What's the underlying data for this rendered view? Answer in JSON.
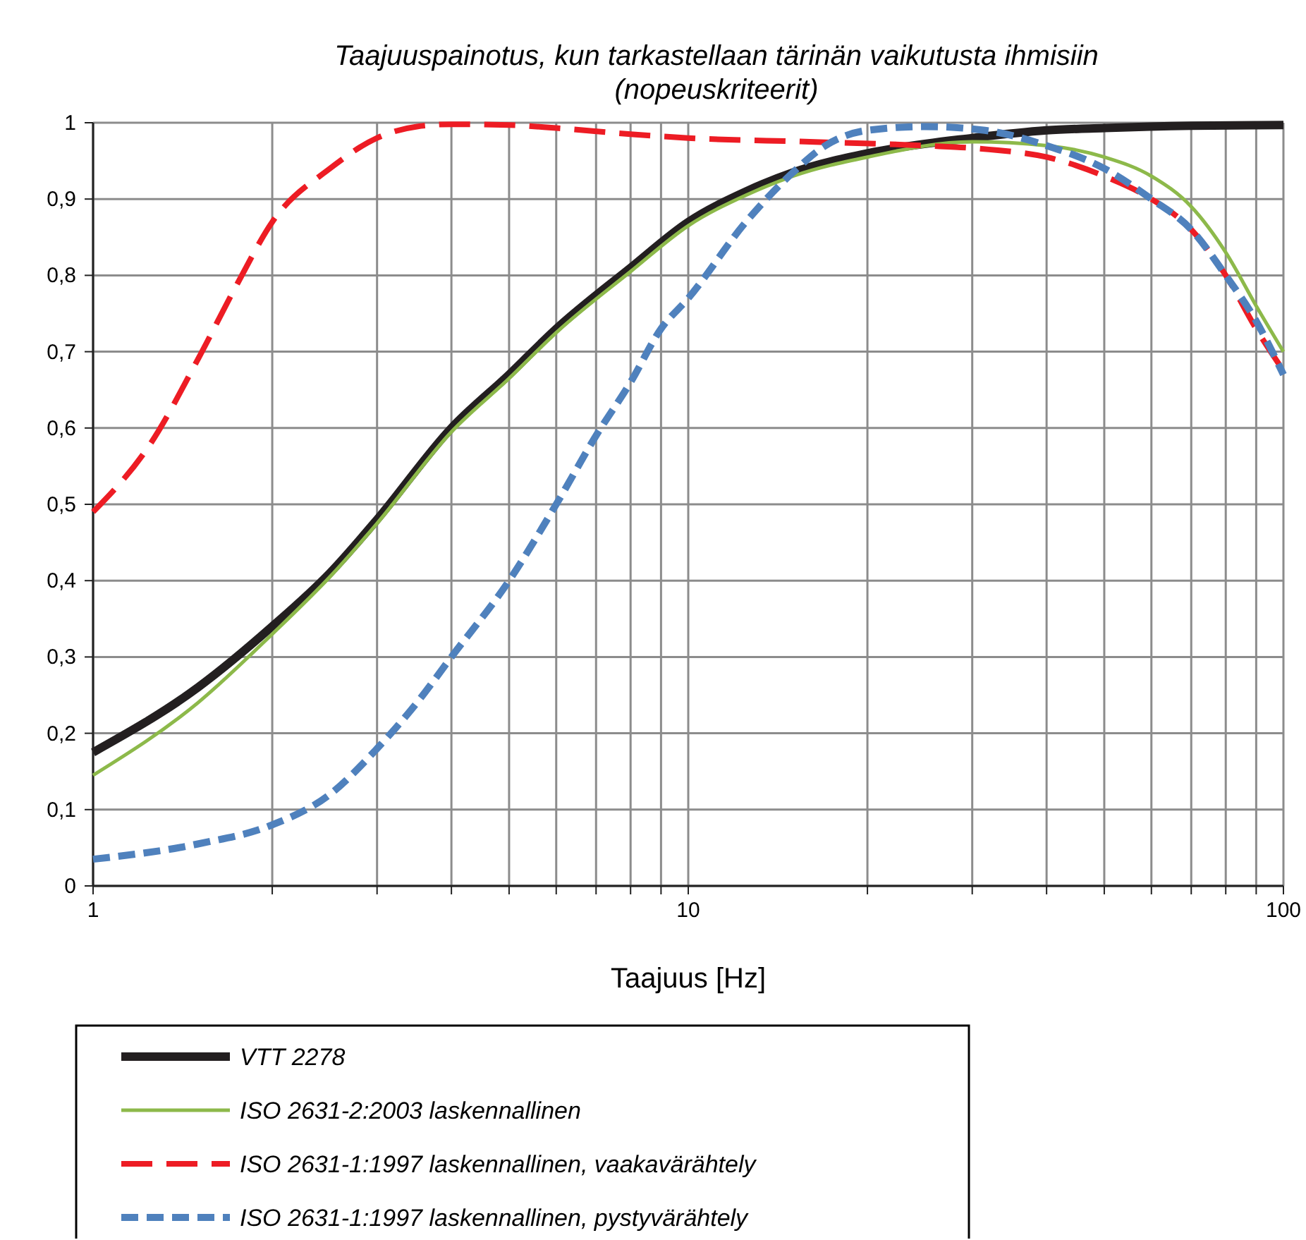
{
  "chart_data": {
    "type": "line",
    "title": "Taajuuspainotus, kun tarkastellaan tärinän vaikutusta ihmisiin (nopeuskriteerit)",
    "xlabel": "Taajuus [Hz]",
    "log": "x",
    "grid": true,
    "legend": "bottom",
    "marker": "none",
    "xlim": [
      1,
      100
    ],
    "xticks": [
      1,
      {
        "value": 2,
        "label": null
      },
      {
        "value": 3,
        "label": null
      },
      {
        "value": 4,
        "label": null
      },
      {
        "value": 5,
        "label": null
      },
      {
        "value": 6,
        "label": null
      },
      {
        "value": 7,
        "label": null
      },
      {
        "value": 8,
        "label": null
      },
      {
        "value": 9,
        "label": null
      },
      10,
      {
        "value": 20,
        "label": null
      },
      {
        "value": 30,
        "label": null
      },
      {
        "value": 40,
        "label": null
      },
      {
        "value": 50,
        "label": null
      },
      {
        "value": 60,
        "label": null
      },
      {
        "value": 70,
        "label": null
      },
      {
        "value": 80,
        "label": null
      },
      {
        "value": 90,
        "label": null
      },
      100
    ],
    "ylim": [
      0,
      1
    ],
    "yticks": [
      0,
      {
        "value": 0.1,
        "label": "0,1"
      },
      {
        "value": 0.2,
        "label": "0,2"
      },
      {
        "value": 0.3,
        "label": "0,3"
      },
      {
        "value": 0.4,
        "label": "0,4"
      },
      {
        "value": 0.5,
        "label": "0,5"
      },
      {
        "value": 0.6,
        "label": "0,6"
      },
      {
        "value": 0.7,
        "label": "0,7"
      },
      {
        "value": 0.8,
        "label": "0,8"
      },
      {
        "value": 0.9,
        "label": "0,9"
      },
      1
    ],
    "series": [
      {
        "name": "VTT 2278",
        "color": "#231f20",
        "line_style": "solid",
        "x": [
          1,
          1.5,
          2,
          2.5,
          3,
          4,
          5,
          6,
          8,
          10,
          12.5,
          15,
          20,
          30,
          40,
          50,
          70,
          100
        ],
        "values": [
          0.175,
          0.26,
          0.34,
          0.41,
          0.48,
          0.6,
          0.67,
          0.73,
          0.81,
          0.87,
          0.91,
          0.935,
          0.96,
          0.98,
          0.99,
          0.993,
          0.996,
          0.997
        ]
      },
      {
        "name": "ISO 2631-2:2003 laskennallinen",
        "color": "#8db94a",
        "line_style": "solid",
        "x": [
          1,
          1.5,
          2,
          2.5,
          3,
          4,
          5,
          6,
          8,
          10,
          12.5,
          15,
          20,
          30,
          40,
          50,
          60,
          70,
          80,
          90,
          100
        ],
        "values": [
          0.145,
          0.24,
          0.33,
          0.405,
          0.475,
          0.595,
          0.665,
          0.725,
          0.805,
          0.865,
          0.905,
          0.93,
          0.955,
          0.975,
          0.97,
          0.955,
          0.93,
          0.89,
          0.83,
          0.76,
          0.7
        ]
      },
      {
        "name": "ISO 2631-1:1997 laskennallinen, vaakavärähtely",
        "color": "#ed1c24",
        "line_style": "dashed",
        "x": [
          1,
          1.25,
          1.5,
          1.75,
          2,
          2.5,
          3,
          3.5,
          4,
          5,
          6,
          8,
          10,
          16,
          25,
          32,
          40,
          50,
          60,
          70,
          80,
          90,
          100
        ],
        "values": [
          0.49,
          0.58,
          0.69,
          0.79,
          0.87,
          0.94,
          0.98,
          0.995,
          0.998,
          0.997,
          0.993,
          0.985,
          0.98,
          0.975,
          0.97,
          0.965,
          0.955,
          0.93,
          0.9,
          0.86,
          0.8,
          0.73,
          0.675
        ]
      },
      {
        "name": "ISO 2631-1:1997 laskennallinen, pystyvärähtely",
        "color": "#4f81bd",
        "line_style": "dotted",
        "x": [
          1,
          1.5,
          2,
          2.5,
          3,
          3.5,
          4,
          5,
          6,
          7,
          8,
          9,
          10,
          12.5,
          15,
          17,
          20,
          25,
          31.5,
          40,
          50,
          60,
          70,
          80,
          90,
          100
        ],
        "values": [
          0.035,
          0.055,
          0.08,
          0.12,
          0.18,
          0.24,
          0.3,
          0.4,
          0.5,
          0.59,
          0.66,
          0.73,
          0.77,
          0.87,
          0.935,
          0.97,
          0.99,
          0.995,
          0.99,
          0.97,
          0.94,
          0.9,
          0.86,
          0.8,
          0.74,
          0.67
        ]
      }
    ]
  }
}
